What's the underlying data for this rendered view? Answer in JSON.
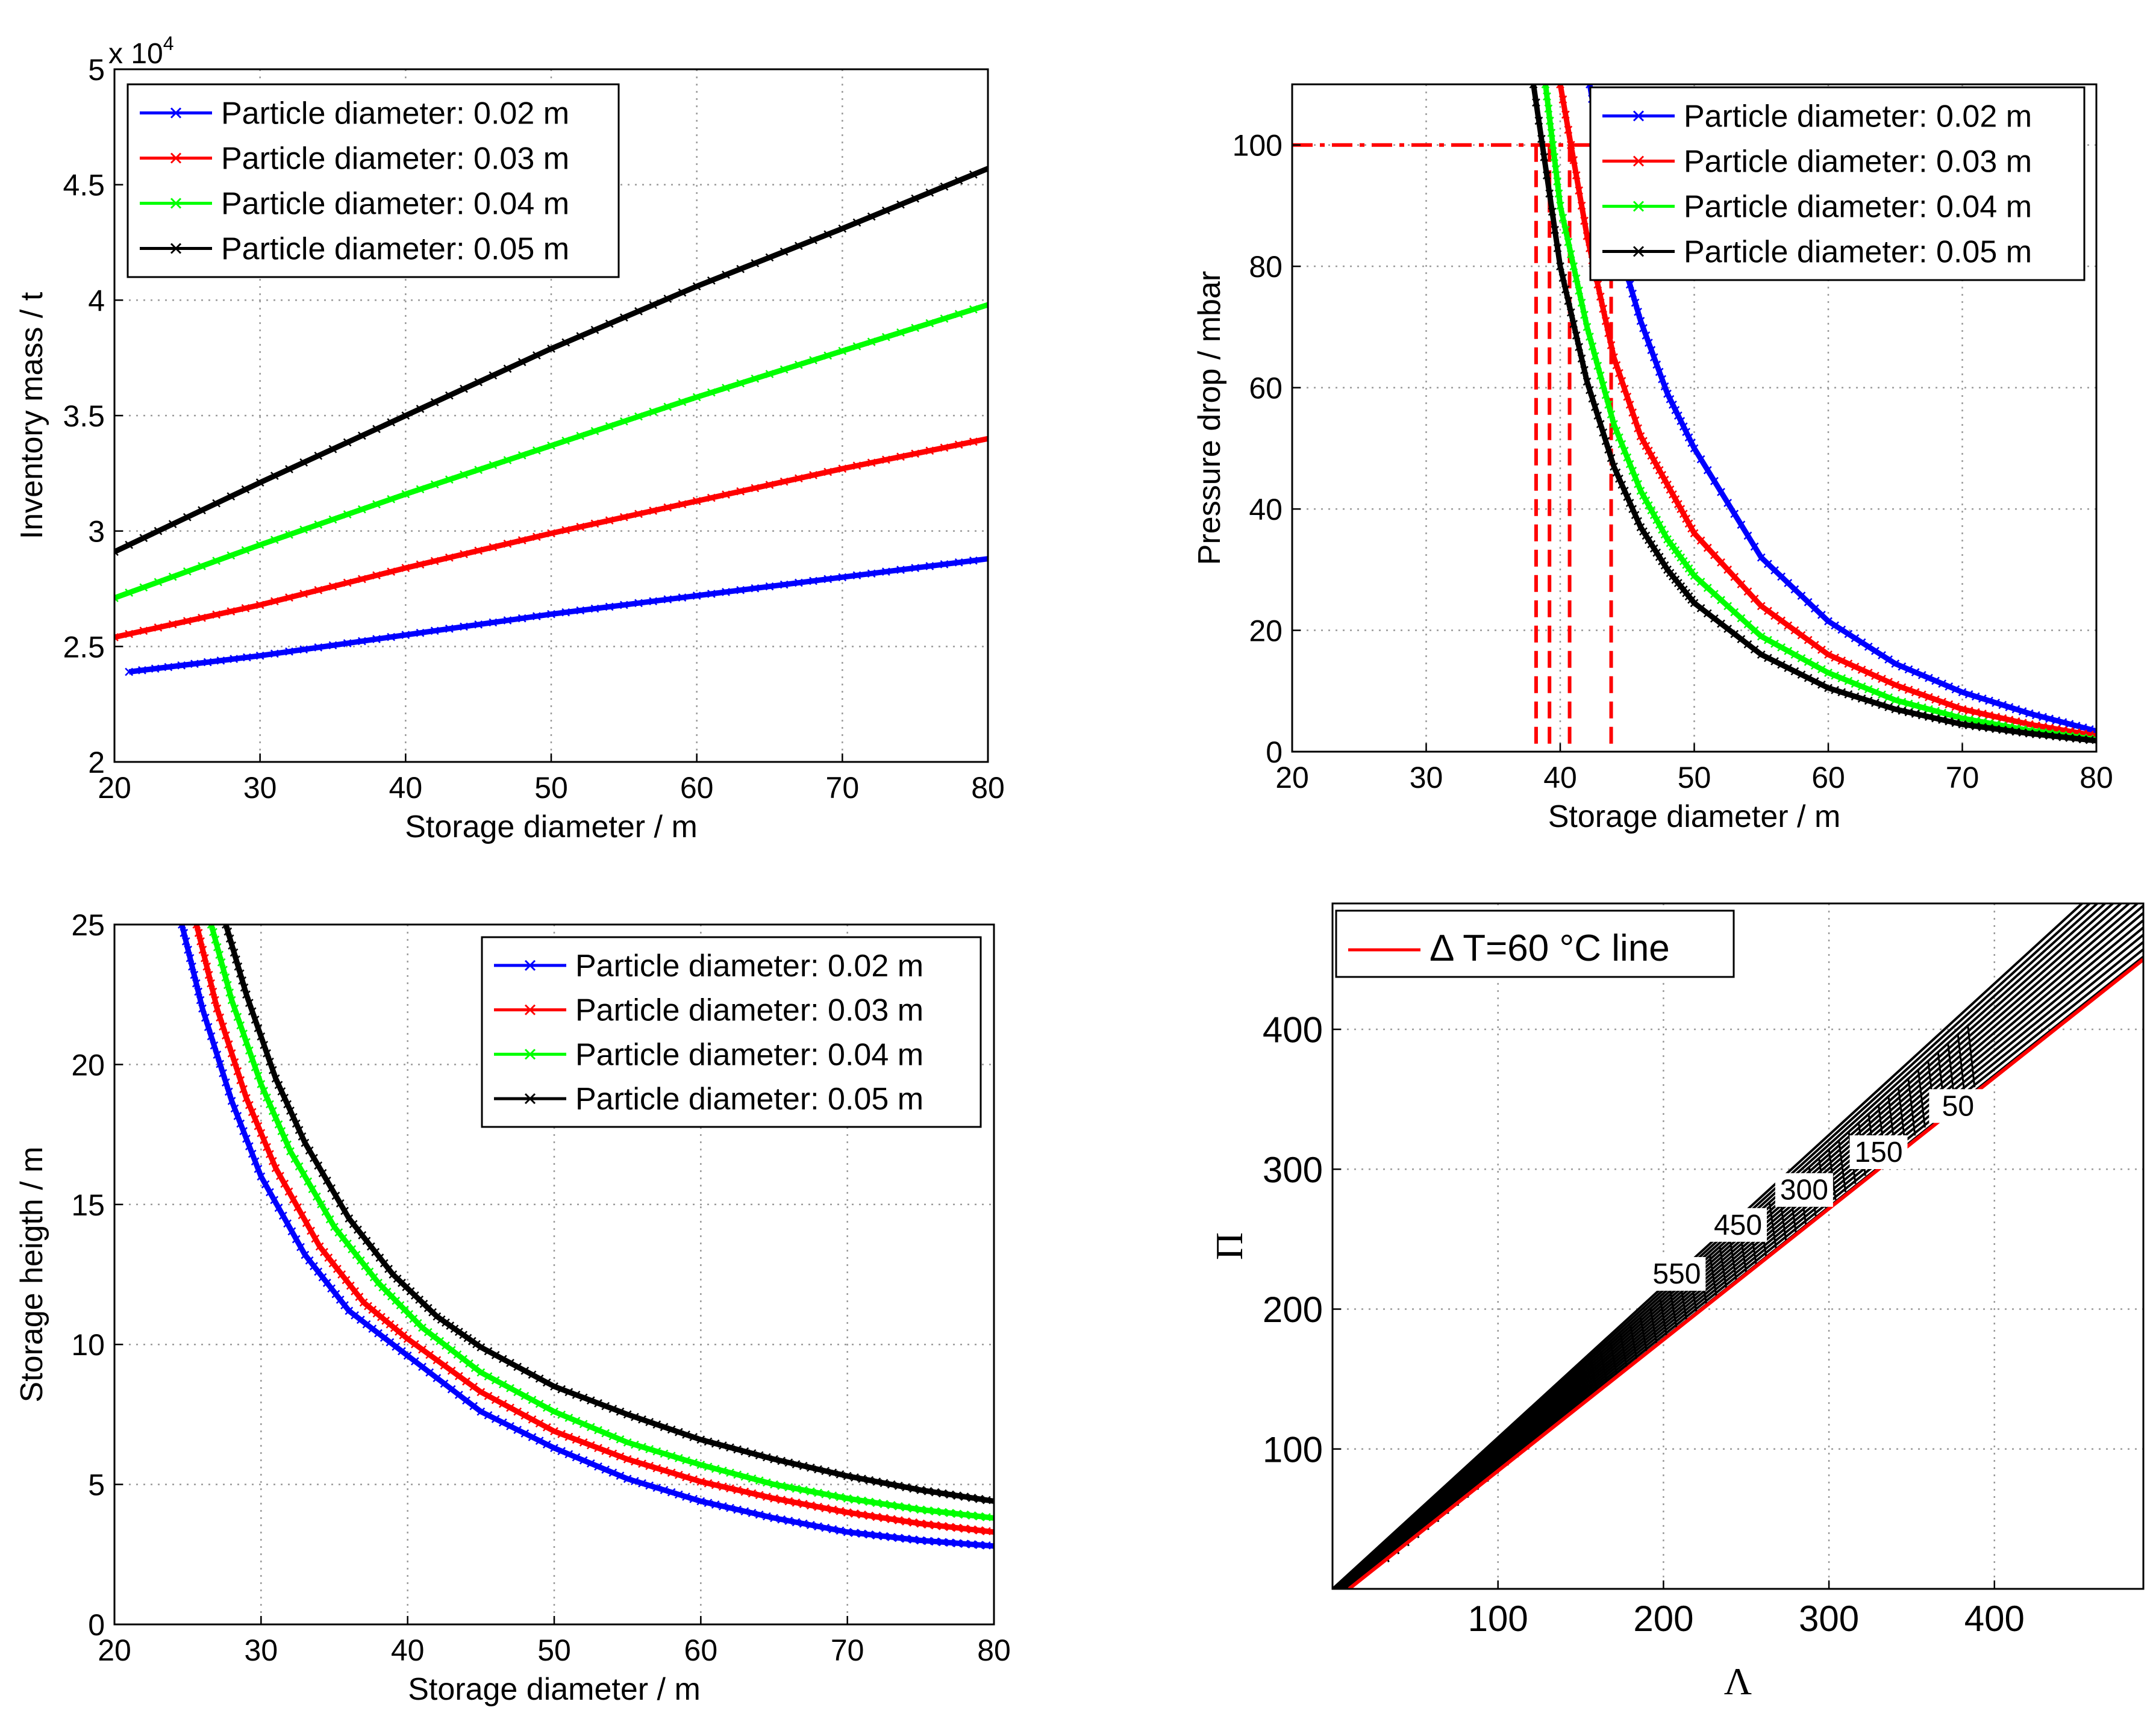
{
  "colors": {
    "blue": "#0000ff",
    "red": "#ff0000",
    "green": "#00ff00",
    "black": "#000000",
    "grid": "#9a9a9a"
  },
  "chart_data": [
    {
      "id": "inventory",
      "type": "line",
      "title": "",
      "xlabel": "Storage diameter / m",
      "ylabel": "Inventory mass / t",
      "exponent_label": "x 10",
      "exponent_power": "4",
      "xlim": [
        20,
        80
      ],
      "ylim": [
        2,
        5
      ],
      "xticks": [
        "20",
        "30",
        "40",
        "50",
        "60",
        "70",
        "80"
      ],
      "yticks": [
        "2",
        "2.5",
        "3",
        "3.5",
        "4",
        "4.5",
        "5"
      ],
      "grid": true,
      "legend_position": "top-left",
      "marker": "x",
      "series": [
        {
          "name": "Particle diameter: 0.02 m",
          "color": "blue",
          "x": [
            21,
            30,
            40,
            50,
            60,
            70,
            80
          ],
          "y": [
            2.39,
            2.46,
            2.55,
            2.64,
            2.72,
            2.8,
            2.88
          ]
        },
        {
          "name": "Particle diameter: 0.03 m",
          "color": "red",
          "x": [
            20,
            30,
            40,
            50,
            60,
            70,
            80
          ],
          "y": [
            2.54,
            2.68,
            2.84,
            2.99,
            3.13,
            3.27,
            3.4
          ]
        },
        {
          "name": "Particle diameter: 0.04 m",
          "color": "green",
          "x": [
            20,
            30,
            40,
            50,
            60,
            70,
            80
          ],
          "y": [
            2.71,
            2.94,
            3.16,
            3.37,
            3.58,
            3.78,
            3.98
          ]
        },
        {
          "name": "Particle diameter: 0.05 m",
          "color": "black",
          "x": [
            20,
            30,
            40,
            50,
            60,
            70,
            80
          ],
          "y": [
            2.91,
            3.21,
            3.5,
            3.79,
            4.06,
            4.31,
            4.57
          ]
        }
      ]
    },
    {
      "id": "pressure",
      "type": "line",
      "title": "",
      "xlabel": "Storage diameter / m",
      "ylabel": "Pressure drop / mbar",
      "xlim": [
        20,
        80
      ],
      "ylim": [
        0,
        110
      ],
      "xticks": [
        "20",
        "30",
        "40",
        "50",
        "60",
        "70",
        "80"
      ],
      "yticks": [
        "0",
        "20",
        "40",
        "60",
        "80",
        "100"
      ],
      "grid": true,
      "legend_position": "top-right",
      "marker": "x",
      "series": [
        {
          "name": "Particle diameter: 0.02 m",
          "color": "blue",
          "x": [
            42.2,
            44,
            46,
            48,
            50,
            55,
            60,
            65,
            70,
            75,
            80
          ],
          "y": [
            110,
            86,
            71,
            59,
            50,
            32,
            21.5,
            14.5,
            9.8,
            6.3,
            3.4
          ]
        },
        {
          "name": "Particle diameter: 0.03 m",
          "color": "red",
          "x": [
            40.0,
            42,
            44,
            46,
            48,
            50,
            55,
            60,
            65,
            70,
            75,
            80
          ],
          "y": [
            110,
            85,
            65,
            52,
            44,
            36,
            24,
            16,
            11,
            7,
            4.5,
            2.6
          ]
        },
        {
          "name": "Particle diameter: 0.04 m",
          "color": "green",
          "x": [
            38.9,
            40,
            42,
            44,
            46,
            48,
            50,
            55,
            60,
            65,
            70,
            75,
            80
          ],
          "y": [
            110,
            90,
            70,
            54,
            43,
            35,
            29,
            19,
            13,
            8.5,
            5.5,
            3.5,
            2.0
          ]
        },
        {
          "name": "Particle diameter: 0.05 m",
          "color": "black",
          "x": [
            38.0,
            40,
            42,
            44,
            46,
            48,
            50,
            55,
            60,
            65,
            70,
            75,
            80
          ],
          "y": [
            110,
            80,
            61,
            47,
            37,
            30,
            24.5,
            16,
            10.5,
            7,
            4.5,
            3,
            1.8
          ]
        }
      ],
      "reference_lines": {
        "horizontal_y": 100,
        "horizontal_x_end": 42.5,
        "vertical_x": [
          38.2,
          39.2,
          40.7,
          43.8
        ],
        "color": "red",
        "style": "dash-dot horizontal, dashed vertical"
      }
    },
    {
      "id": "height",
      "type": "line",
      "title": "",
      "xlabel": "Storage diameter / m",
      "ylabel": "Storage heigth / m",
      "xlim": [
        20,
        80
      ],
      "ylim": [
        0,
        25
      ],
      "xticks": [
        "20",
        "30",
        "40",
        "50",
        "60",
        "70",
        "80"
      ],
      "yticks": [
        "0",
        "5",
        "10",
        "15",
        "20",
        "25"
      ],
      "grid": true,
      "legend_position": "top-right",
      "marker": "x",
      "series": [
        {
          "name": "Particle diameter: 0.02 m",
          "color": "blue",
          "x": [
            24.6,
            26,
            28,
            30,
            33,
            36,
            40,
            45,
            50,
            55,
            60,
            65,
            70,
            75,
            80
          ],
          "y": [
            25,
            22.0,
            18.7,
            16.0,
            13.2,
            11.2,
            9.6,
            7.6,
            6.3,
            5.2,
            4.4,
            3.8,
            3.3,
            3.0,
            2.8
          ]
        },
        {
          "name": "Particle diameter: 0.03 m",
          "color": "red",
          "x": [
            25.6,
            27,
            29,
            31,
            34,
            37,
            40,
            45,
            50,
            55,
            60,
            65,
            70,
            75,
            80
          ],
          "y": [
            25,
            22.0,
            18.8,
            16.3,
            13.5,
            11.5,
            10.2,
            8.3,
            6.9,
            5.9,
            5.1,
            4.5,
            4.0,
            3.6,
            3.3
          ]
        },
        {
          "name": "Particle diameter: 0.04 m",
          "color": "green",
          "x": [
            26.6,
            28,
            30,
            32,
            35,
            38,
            41,
            45,
            50,
            55,
            60,
            65,
            70,
            75,
            80
          ],
          "y": [
            25,
            22.3,
            19.3,
            16.9,
            14.2,
            12.2,
            10.6,
            9.0,
            7.6,
            6.5,
            5.7,
            5.0,
            4.5,
            4.1,
            3.8
          ]
        },
        {
          "name": "Particle diameter: 0.05 m",
          "color": "black",
          "x": [
            27.6,
            29,
            31,
            33,
            36,
            39,
            42,
            45,
            50,
            55,
            60,
            65,
            70,
            75,
            80
          ],
          "y": [
            25,
            22.5,
            19.5,
            17.2,
            14.5,
            12.5,
            11.0,
            9.9,
            8.5,
            7.5,
            6.6,
            5.9,
            5.3,
            4.8,
            4.4
          ]
        }
      ]
    },
    {
      "id": "contour",
      "type": "line",
      "title": "",
      "xlabel": "Λ",
      "ylabel": "Π",
      "xlim": [
        0,
        490
      ],
      "ylim": [
        0,
        490
      ],
      "xticks": [
        "100",
        "200",
        "300",
        "400"
      ],
      "yticks": [
        "100",
        "200",
        "300",
        "400"
      ],
      "xtick_values": [
        100,
        200,
        300,
        400
      ],
      "ytick_values": [
        100,
        200,
        300,
        400
      ],
      "grid": true,
      "legend_position": "top-left",
      "series": [
        {
          "name": "Δ T=60 °C line",
          "color": "red",
          "x": [
            10,
            490
          ],
          "y": [
            0,
            450
          ]
        }
      ],
      "contour_band": {
        "upper_line": {
          "x": [
            0,
            490
          ],
          "y": [
            0,
            530
          ]
        },
        "lower_line": {
          "x": [
            10,
            490
          ],
          "y": [
            0,
            452
          ]
        },
        "line_count": 16
      },
      "contour_labels": [
        {
          "text": "50",
          "x": 378,
          "y": 340
        },
        {
          "text": "150",
          "x": 330,
          "y": 307
        },
        {
          "text": "300",
          "x": 285,
          "y": 280
        },
        {
          "text": "450",
          "x": 245,
          "y": 255
        },
        {
          "text": "550",
          "x": 208,
          "y": 220
        }
      ]
    }
  ]
}
